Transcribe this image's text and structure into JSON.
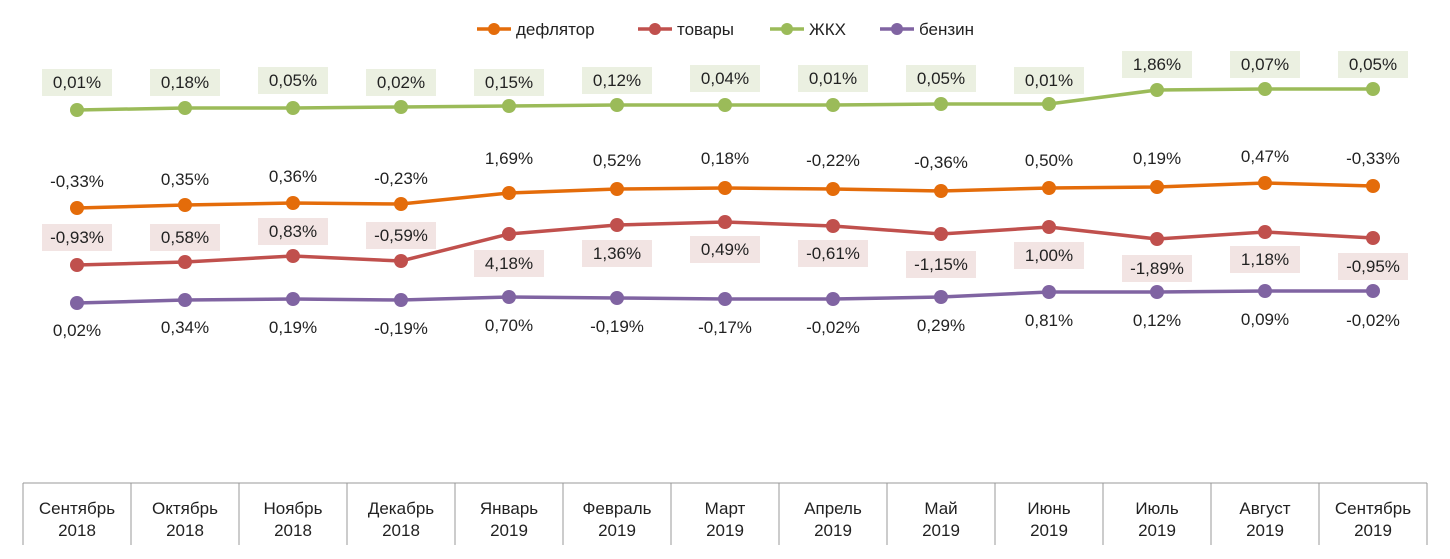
{
  "chart_data": {
    "type": "line",
    "title": "",
    "xlabel": "",
    "ylabel": "",
    "grid": false,
    "legend_position": "top",
    "categories": [
      [
        "Сентябрь",
        "2018"
      ],
      [
        "Октябрь",
        "2018"
      ],
      [
        "Ноябрь",
        "2018"
      ],
      [
        "Декабрь",
        "2018"
      ],
      [
        "Январь",
        "2019"
      ],
      [
        "Февраль",
        "2019"
      ],
      [
        "Март",
        "2019"
      ],
      [
        "Апрель",
        "2019"
      ],
      [
        "Май",
        "2019"
      ],
      [
        "Июнь",
        "2019"
      ],
      [
        "Июль",
        "2019"
      ],
      [
        "Август",
        "2019"
      ],
      [
        "Сентябрь",
        "2019"
      ]
    ],
    "series": [
      {
        "name": "дефлятор",
        "color": "#E46C0A",
        "values": [
          "-0,33%",
          "0,35%",
          "0,36%",
          "-0,23%",
          "1,69%",
          "0,52%",
          "0,18%",
          "-0,22%",
          "-0,36%",
          "0,50%",
          "0,19%",
          "0,47%",
          "-0,33%"
        ]
      },
      {
        "name": "товары",
        "color": "#C0504D",
        "label_bg": "#F2E4E3",
        "values": [
          "-0,93%",
          "0,58%",
          "0,83%",
          "-0,59%",
          "4,18%",
          "1,36%",
          "0,49%",
          "-0,61%",
          "-1,15%",
          "1,00%",
          "-1,89%",
          "1,18%",
          "-0,95%"
        ]
      },
      {
        "name": "ЖКХ",
        "color": "#9BBB59",
        "label_bg": "#EBF0E1",
        "values": [
          "0,01%",
          "0,18%",
          "0,05%",
          "0,02%",
          "0,15%",
          "0,12%",
          "0,04%",
          "0,01%",
          "0,05%",
          "0,01%",
          "1,86%",
          "0,07%",
          "0,05%"
        ]
      },
      {
        "name": "бензин",
        "color": "#8064A2",
        "values": [
          "0,02%",
          "0,34%",
          "0,19%",
          "-0,19%",
          "0,70%",
          "-0,19%",
          "-0,17%",
          "-0,02%",
          "0,29%",
          "0,81%",
          "0,12%",
          "0,09%",
          "-0,02%"
        ]
      }
    ]
  }
}
